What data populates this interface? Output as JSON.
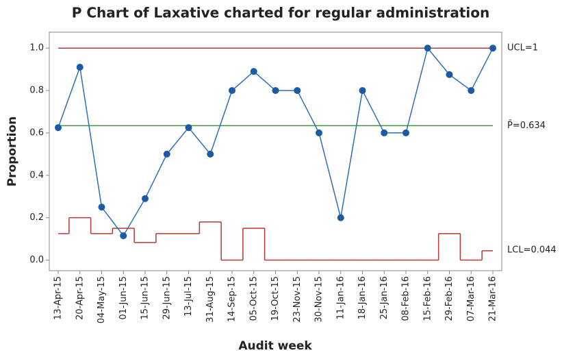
{
  "chart_data": {
    "type": "line",
    "title": "P Chart of Laxative charted for regular administration",
    "xlabel": "Audit week",
    "ylabel": "Proportion",
    "categories": [
      "13-Apr-15",
      "20-Apr-15",
      "04-May-15",
      "01-Jun-15",
      "15-Jun-15",
      "29-Jun-15",
      "13-Jul-15",
      "31-Aug-15",
      "14-Sep-15",
      "05-Oct-15",
      "19-Oct-15",
      "23-Nov-15",
      "30-Nov-15",
      "11-Jan-16",
      "18-Jan-16",
      "25-Jan-16",
      "08-Feb-16",
      "15-Feb-16",
      "29-Feb-16",
      "07-Mar-16",
      "21-Mar-16"
    ],
    "series": [
      {
        "name": "Proportion",
        "color": "#2a6ebb",
        "values": [
          0.625,
          0.91,
          0.25,
          0.115,
          0.29,
          0.5,
          0.625,
          0.5,
          0.8,
          0.89,
          0.8,
          0.8,
          0.6,
          0.2,
          0.8,
          0.6,
          0.6,
          1.0,
          0.875,
          0.8,
          1.0
        ]
      }
    ],
    "ucl": {
      "value": 1,
      "label": "UCL=1",
      "color": "#b03a3a"
    },
    "center": {
      "value": 0.634,
      "label": "P̄=0.634",
      "color": "#3a9a3a"
    },
    "lcl": {
      "label": "LCL=0.044",
      "color": "#b03a3a",
      "values": [
        0.125,
        0.2,
        0.125,
        0.15,
        0.083,
        0.125,
        0.125,
        0.18,
        0,
        0.15,
        0,
        0,
        0,
        0,
        0,
        0,
        0,
        0,
        0.125,
        0,
        0.044
      ]
    },
    "ylim": [
      -0.05,
      1.075
    ],
    "yticks": [
      {
        "value": 0,
        "label": "0.0"
      },
      0.2,
      0.4,
      0.6,
      0.8,
      {
        "value": 1,
        "label": "1.0"
      }
    ]
  }
}
